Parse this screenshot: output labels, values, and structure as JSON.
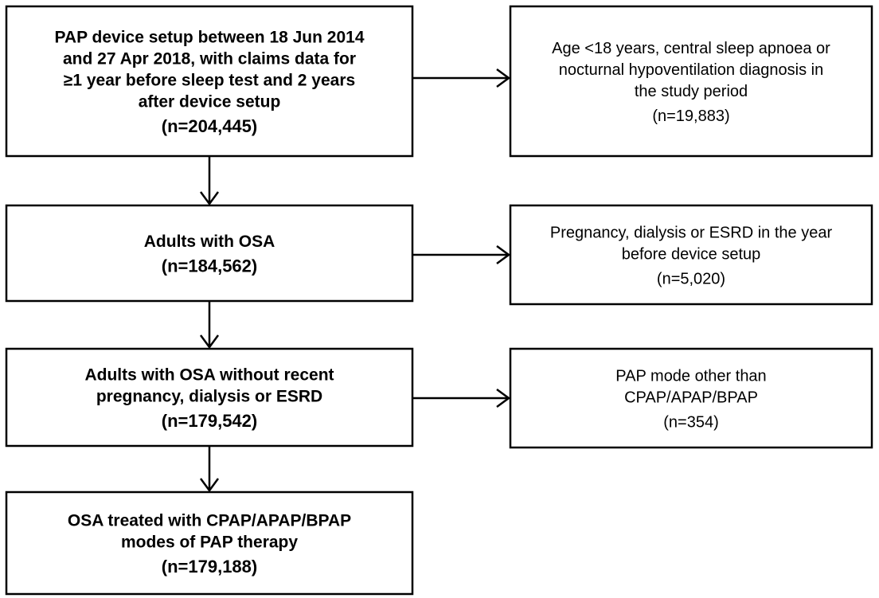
{
  "nodes": [
    {
      "lines": [
        "PAP device setup between 18 Jun 2014",
        "and 27 Apr 2018, with claims data for",
        "≥1 year before sleep test and 2 years",
        "after device setup"
      ],
      "count": "(n=204,445)"
    },
    {
      "lines": [
        "Adults with OSA"
      ],
      "count": "(n=184,562)"
    },
    {
      "lines": [
        "Adults with OSA without recent",
        "pregnancy, dialysis or ESRD"
      ],
      "count": "(n=179,542)"
    },
    {
      "lines": [
        "OSA treated with CPAP/APAP/BPAP",
        "modes of PAP therapy"
      ],
      "count": "(n=179,188)"
    }
  ],
  "exclusions": [
    {
      "lines": [
        "Age <18 years, central sleep apnoea or",
        "nocturnal hypoventilation diagnosis in",
        "the study period"
      ],
      "count": "(n=19,883)"
    },
    {
      "lines": [
        "Pregnancy, dialysis or ESRD in the year",
        "before device setup"
      ],
      "count": "(n=5,020)"
    },
    {
      "lines": [
        "PAP mode other than",
        "CPAP/APAP/BPAP"
      ],
      "count": "(n=354)"
    }
  ]
}
